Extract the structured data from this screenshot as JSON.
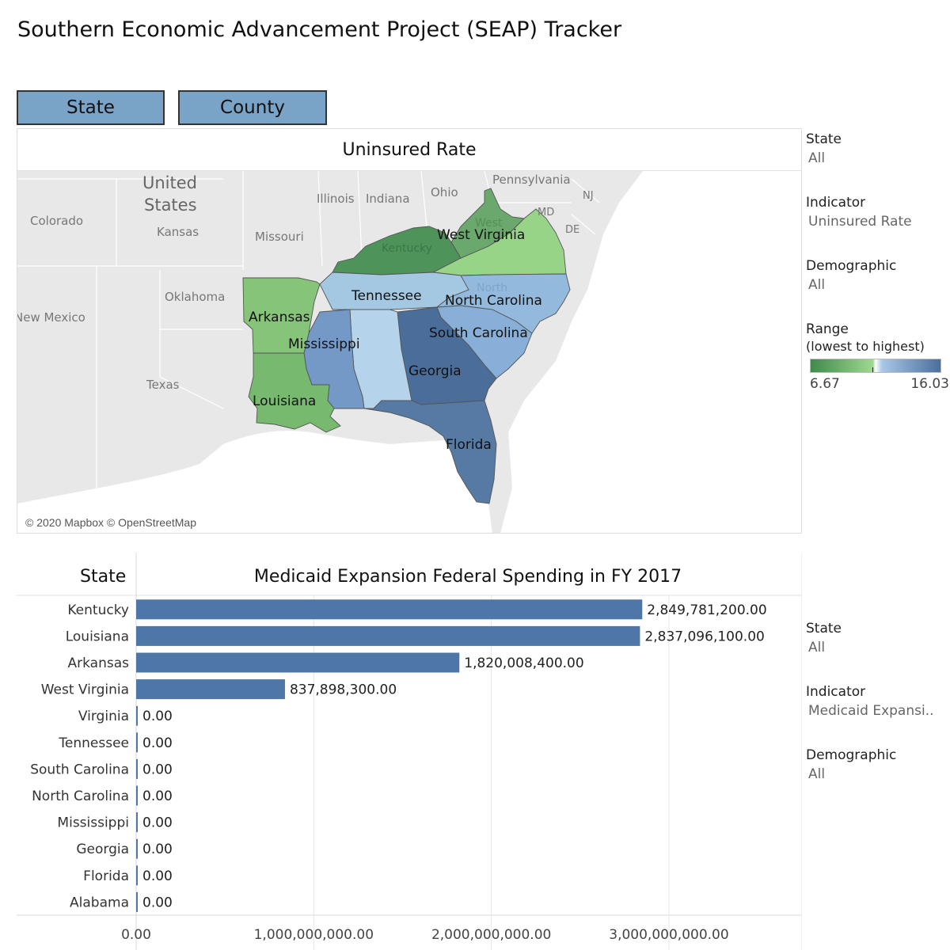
{
  "app": {
    "title": "Southern Economic Advancement Project (SEAP) Tracker"
  },
  "view_toggle": {
    "state_label": "State",
    "county_label": "County"
  },
  "map": {
    "title": "Uninsured Rate",
    "credit": "© 2020 Mapbox © OpenStreetMap",
    "background_labels": {
      "united_states_1": "United",
      "united_states_2": "States",
      "colorado": "Colorado",
      "kansas": "Kansas",
      "missouri": "Missouri",
      "illinois": "Illinois",
      "indiana": "Indiana",
      "ohio": "Ohio",
      "pennsylvania": "Pennsylvania",
      "nj": "NJ",
      "md": "MD",
      "de": "DE",
      "oklahoma": "Oklahoma",
      "new_mexico": "New Mexico",
      "texas": "Texas",
      "kentucky_faint": "Kentucky",
      "tennessee_faint": "Tennessee",
      "arkansas_faint": "Arkansas",
      "north_faint": "North",
      "west_faint": "West",
      "georgia_faint": "Georgia"
    },
    "state_labels": {
      "west_virginia": "West Virginia",
      "tennessee": "Tennessee",
      "north_carolina": "North Carolina",
      "arkansas": "Arkansas",
      "mississippi": "Mississippi",
      "south_carolina": "South Carolina",
      "georgia": "Georgia",
      "louisiana": "Louisiana",
      "florida": "Florida"
    },
    "colors": {
      "kentucky": "#4e935a",
      "west_virginia": "#6aa86d",
      "virginia": "#98d488",
      "arkansas": "#86c479",
      "louisiana": "#77b96f",
      "tennessee": "#a5c8e2",
      "north_carolina": "#93b9dc",
      "south_carolina": "#88afd7",
      "mississippi": "#7499c7",
      "alabama": "#b5d3ea",
      "georgia": "#4b6d9a",
      "florida": "#577aa4"
    }
  },
  "filters_top": {
    "state": {
      "label": "State",
      "value": "All"
    },
    "indicator": {
      "label": "Indicator",
      "value": "Uninsured Rate"
    },
    "demographic": {
      "label": "Demographic",
      "value": "All"
    },
    "range": {
      "label": "Range",
      "sublabel": "(lowest to highest)",
      "min": "6.67",
      "max": "16.03"
    }
  },
  "filters_bottom": {
    "state": {
      "label": "State",
      "value": "All"
    },
    "indicator": {
      "label": "Indicator",
      "value": "Medicaid Expansi.."
    },
    "demographic": {
      "label": "Demographic",
      "value": "All"
    }
  },
  "chart_data": {
    "type": "bar",
    "orientation": "horizontal",
    "title": "Medicaid Expansion Federal Spending in FY 2017",
    "row_header": "State",
    "categories": [
      "Kentucky",
      "Louisiana",
      "Arkansas",
      "West Virginia",
      "Virginia",
      "Tennessee",
      "South Carolina",
      "North Carolina",
      "Mississippi",
      "Georgia",
      "Florida",
      "Alabama"
    ],
    "values": [
      2849781200,
      2837096100,
      1820008400,
      837898300,
      0,
      0,
      0,
      0,
      0,
      0,
      0,
      0
    ],
    "value_labels": [
      "2,849,781,200.00",
      "2,837,096,100.00",
      "1,820,008,400.00",
      "837,898,300.00",
      "0.00",
      "0.00",
      "0.00",
      "0.00",
      "0.00",
      "0.00",
      "0.00",
      "0.00"
    ],
    "x_ticks": [
      0,
      1000000000,
      2000000000,
      3000000000
    ],
    "x_tick_labels": [
      "0.00",
      "1,000,000,000.00",
      "2,000,000,000.00",
      "3,000,000,000.00"
    ],
    "xlim": [
      0,
      3700000000
    ],
    "bar_color": "#4e76a6"
  }
}
